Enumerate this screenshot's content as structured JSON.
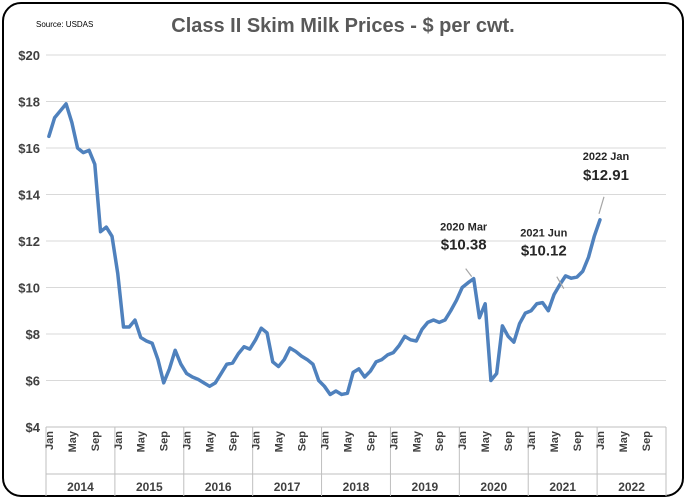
{
  "chart_data": {
    "type": "line",
    "title": "Class II Skim Milk Prices - $ per cwt.",
    "source": "Source: USDAS",
    "xlabel": "",
    "ylabel": "",
    "ylim": [
      4,
      20
    ],
    "y_ticks": [
      "$4",
      "$6",
      "$8",
      "$10",
      "$12",
      "$14",
      "$16",
      "$18",
      "$20"
    ],
    "y_tick_values": [
      4,
      6,
      8,
      10,
      12,
      14,
      16,
      18,
      20
    ],
    "x_month_labels": [
      "Jan",
      "May",
      "Sep",
      "Jan",
      "May",
      "Sep",
      "Jan",
      "May",
      "Sep",
      "Jan",
      "May",
      "Sep",
      "Jan",
      "May",
      "Sep",
      "Jan",
      "May",
      "Sep",
      "Jan",
      "May",
      "Sep",
      "Jan",
      "May",
      "Sep",
      "Jan",
      "May",
      "Sep"
    ],
    "years": [
      "2014",
      "2015",
      "2016",
      "2017",
      "2018",
      "2019",
      "2020",
      "2021",
      "2022"
    ],
    "grid": true,
    "series": [
      {
        "name": "Class II Skim Milk Price",
        "color": "#4f81bd",
        "start": "2014-01",
        "values": [
          16.5,
          17.3,
          17.6,
          17.9,
          17.1,
          16.0,
          15.8,
          15.9,
          15.3,
          12.4,
          12.6,
          12.2,
          10.6,
          8.3,
          8.3,
          8.6,
          7.85,
          7.7,
          7.6,
          6.9,
          5.9,
          6.5,
          7.3,
          6.7,
          6.3,
          6.15,
          6.05,
          5.9,
          5.75,
          5.9,
          6.3,
          6.7,
          6.75,
          7.15,
          7.45,
          7.35,
          7.75,
          8.25,
          8.05,
          6.8,
          6.6,
          6.9,
          7.4,
          7.25,
          7.05,
          6.9,
          6.7,
          6.0,
          5.75,
          5.4,
          5.55,
          5.4,
          5.45,
          6.35,
          6.5,
          6.15,
          6.4,
          6.8,
          6.9,
          7.1,
          7.2,
          7.5,
          7.9,
          7.75,
          7.7,
          8.2,
          8.5,
          8.6,
          8.5,
          8.6,
          9.0,
          9.45,
          10.0,
          10.2,
          10.38,
          8.7,
          9.3,
          6.0,
          6.3,
          8.35,
          7.9,
          7.65,
          8.45,
          8.9,
          9.0,
          9.3,
          9.35,
          9.0,
          9.7,
          10.12,
          10.5,
          10.4,
          10.45,
          10.7,
          11.3,
          12.2,
          12.91
        ]
      }
    ],
    "annotations": [
      {
        "label": "2020 Mar",
        "value_text": "$10.38",
        "date": "2020-03",
        "value": 10.38
      },
      {
        "label": "2021 Jun",
        "value_text": "$10.12",
        "date": "2021-06",
        "value": 10.12
      },
      {
        "label": "2022 Jan",
        "value_text": "$12.91",
        "date": "2022-01",
        "value": 12.91
      }
    ]
  }
}
